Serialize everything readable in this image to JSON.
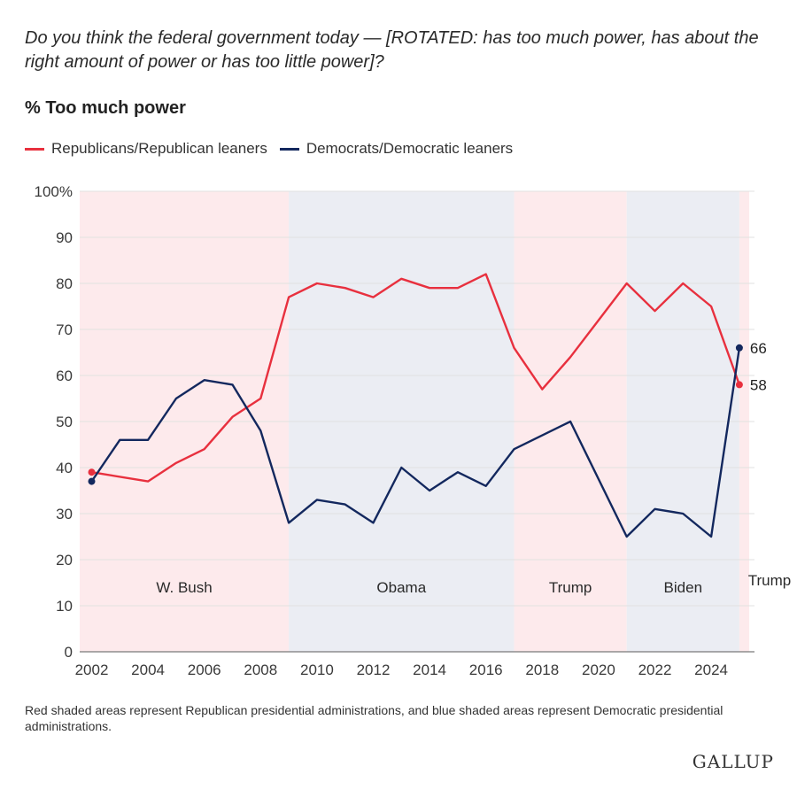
{
  "header": {
    "question": "Do you think the federal government today — [ROTATED: has too much power, has about the right amount of power or has too little power]?",
    "subtitle": "% Too much power"
  },
  "legend": [
    {
      "label": "Republicans/Republican leaners",
      "color": "#e8303e"
    },
    {
      "label": "Democrats/Democratic leaners",
      "color": "#13285e"
    }
  ],
  "chart_data": {
    "type": "line",
    "title": "% Too much power",
    "xlabel": "",
    "ylabel": "",
    "xlim": [
      2002,
      2025
    ],
    "ylim": [
      0,
      100
    ],
    "yticks": [
      "0",
      "10",
      "20",
      "30",
      "40",
      "50",
      "60",
      "70",
      "80",
      "90",
      "100%"
    ],
    "xticks": [
      "2002",
      "2004",
      "2006",
      "2008",
      "2010",
      "2012",
      "2014",
      "2016",
      "2018",
      "2020",
      "2022",
      "2024"
    ],
    "series": [
      {
        "name": "Republicans/Republican leaners",
        "color": "#e8303e",
        "x": [
          2002,
          2004,
          2005,
          2006,
          2007,
          2008,
          2009,
          2010,
          2011,
          2012,
          2013,
          2014,
          2015,
          2016,
          2017,
          2018,
          2019,
          2020,
          2021,
          2022,
          2023,
          2024,
          2025
        ],
        "values": [
          39,
          37,
          41,
          44,
          51,
          55,
          77,
          80,
          79,
          77,
          81,
          79,
          79,
          82,
          66,
          57,
          64,
          72,
          80,
          74,
          80,
          75,
          58
        ]
      },
      {
        "name": "Democrats/Democratic leaners",
        "color": "#13285e",
        "x": [
          2002,
          2003,
          2004,
          2005,
          2006,
          2007,
          2008,
          2009,
          2010,
          2011,
          2012,
          2013,
          2014,
          2015,
          2016,
          2017,
          2019,
          2021,
          2022,
          2023,
          2024,
          2025
        ],
        "values": [
          37,
          46,
          46,
          55,
          59,
          58,
          48,
          28,
          33,
          32,
          28,
          40,
          35,
          39,
          36,
          44,
          50,
          25,
          31,
          30,
          25,
          66
        ]
      }
    ],
    "administrations": [
      {
        "label": "W. Bush",
        "start": 2001.5,
        "end": 2009,
        "party": "Republican",
        "color": "#fdeaec"
      },
      {
        "label": "Obama",
        "start": 2009,
        "end": 2017,
        "party": "Democratic",
        "color": "#ebedf3"
      },
      {
        "label": "Trump",
        "start": 2017,
        "end": 2021,
        "party": "Republican",
        "color": "#fdeaec"
      },
      {
        "label": "Biden",
        "start": 2021,
        "end": 2025,
        "party": "Democratic",
        "color": "#ebedf3"
      },
      {
        "label": "Trump",
        "start": 2025,
        "end": 2025.35,
        "party": "Republican",
        "color": "#fdeaec"
      }
    ],
    "end_labels": [
      {
        "series": "Democrats/Democratic leaners",
        "text": "66"
      },
      {
        "series": "Republicans/Republican leaners",
        "text": "58"
      }
    ],
    "grid": true
  },
  "footnote": "Red shaded areas represent Republican presidential administrations, and blue shaded areas represent Democratic presidential administrations.",
  "brand": "GALLUP"
}
